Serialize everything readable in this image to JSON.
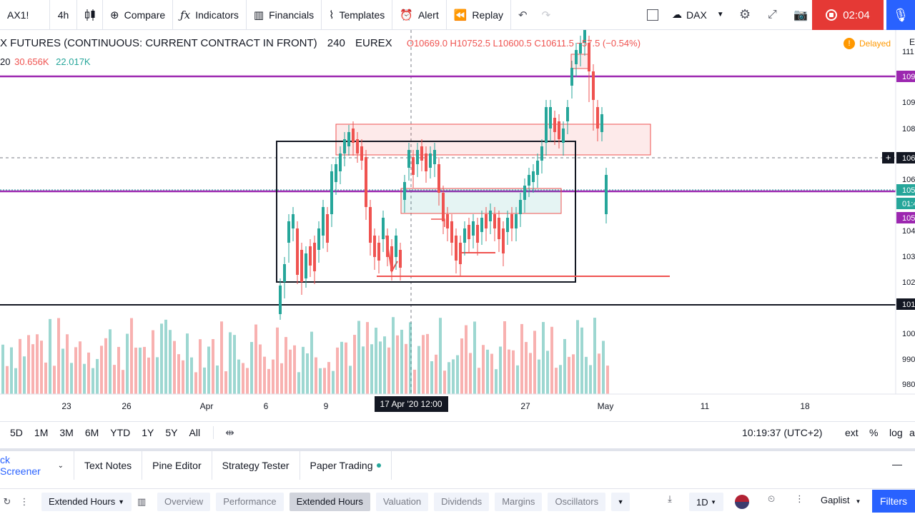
{
  "toolbar": {
    "symbol": "AX1!",
    "interval": "4h",
    "bar_style_icon": "candles-icon",
    "compare": "Compare",
    "indicators": "Indicators",
    "financials": "Financials",
    "templates": "Templates",
    "alert": "Alert",
    "replay": "Replay",
    "layout_name": "DAX",
    "record_time": "02:04"
  },
  "legend": {
    "title": "X FUTURES (CONTINUOUS: CURRENT CONTRACT IN FRONT)",
    "interval": "240",
    "exchange": "EUREX",
    "ohlc": "O10669.0  H10752.5  L10600.5  C10611.5  −57.5 (−0.54%)",
    "vol_label": "20",
    "vol_value": "30.656K",
    "vol_ma": "22.017K",
    "delayed": "Delayed",
    "delayed_icon": "!",
    "corner_label": "E"
  },
  "chart_data": {
    "type": "candlestick",
    "x_ticks": [
      "23",
      "26",
      "Apr",
      "6",
      "9",
      "27",
      "May",
      "11",
      "18"
    ],
    "crosshair_x_label": "17 Apr '20   12:00",
    "y_ticks": [
      "111",
      "109",
      "108",
      "106",
      "104",
      "103",
      "102",
      "100",
      "990",
      "980"
    ],
    "price_tags": [
      {
        "label": "109",
        "color": "#9c27b0"
      },
      {
        "label": "106",
        "color": "#131722"
      },
      {
        "label": "105",
        "color": "#26a69a"
      },
      {
        "label": "01:4",
        "color": "#26a69a"
      },
      {
        "label": "105",
        "color": "#9c27b0"
      },
      {
        "label": "101",
        "color": "#131722"
      }
    ],
    "up_color": "#26a69a",
    "down_color": "#ef5350"
  },
  "rangebar": {
    "ranges": [
      "5D",
      "1M",
      "3M",
      "6M",
      "YTD",
      "1Y",
      "5Y",
      "All"
    ],
    "clock": "10:19:37 (UTC+2)",
    "ext": "ext",
    "pct": "%",
    "log": "log",
    "auto": "a"
  },
  "panel_tabs": {
    "screener": "ck Screener",
    "text_notes": "Text Notes",
    "pine_editor": "Pine Editor",
    "strategy_tester": "Strategy Tester",
    "paper_trading": "Paper Trading"
  },
  "screener": {
    "columns_set": "Extended Hours",
    "chips": [
      "Overview",
      "Performance",
      "Extended Hours",
      "Valuation",
      "Dividends",
      "Margins",
      "Oscillators"
    ],
    "interval": "1D",
    "list": "Gaplist",
    "filters": "Filters"
  }
}
